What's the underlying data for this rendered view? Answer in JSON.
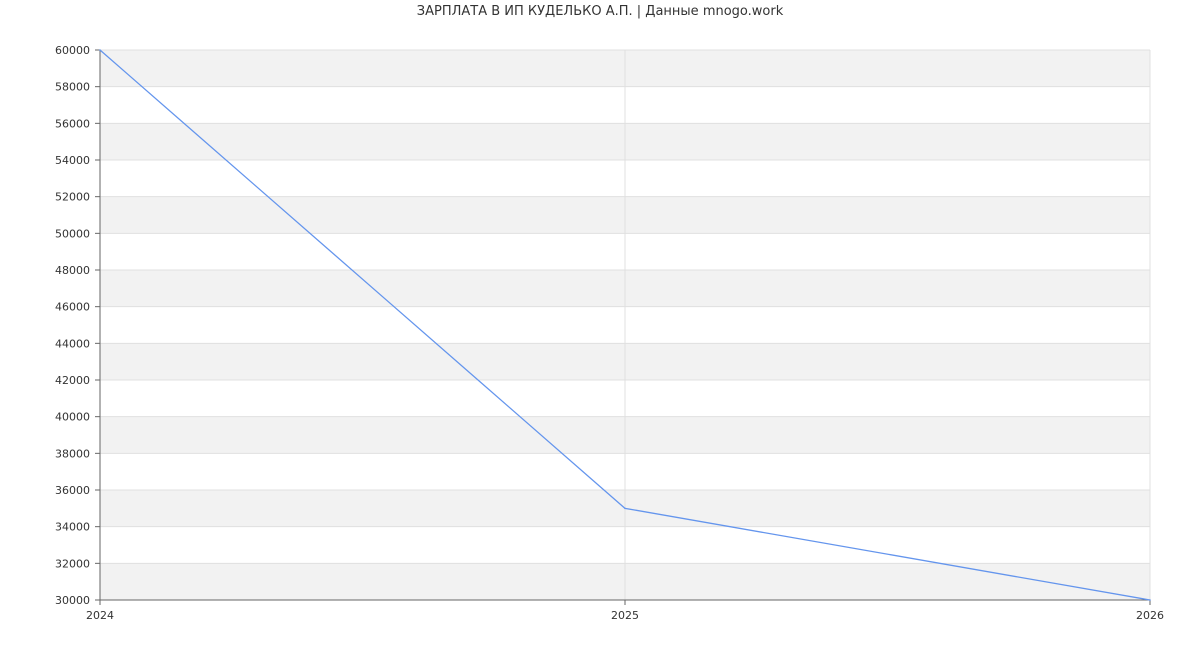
{
  "chart_data": {
    "type": "line",
    "title": "ЗАРПЛАТА В ИП КУДЕЛЬКО А.П. | Данные mnogo.work",
    "xlabel": "",
    "ylabel": "",
    "x": [
      "2024",
      "2025",
      "2026"
    ],
    "series": [
      {
        "values": [
          60000,
          35000,
          30000
        ]
      }
    ],
    "ylim": [
      30000,
      60000
    ],
    "yticks": [
      30000,
      32000,
      34000,
      36000,
      38000,
      40000,
      42000,
      44000,
      46000,
      48000,
      50000,
      52000,
      54000,
      56000,
      58000,
      60000
    ],
    "grid": true,
    "alternating_bands": true,
    "colors": {
      "line": "#6495ed",
      "band": "#f2f2f2",
      "grid": "#e0e0e0",
      "axis": "#666666",
      "text": "#333333"
    }
  }
}
